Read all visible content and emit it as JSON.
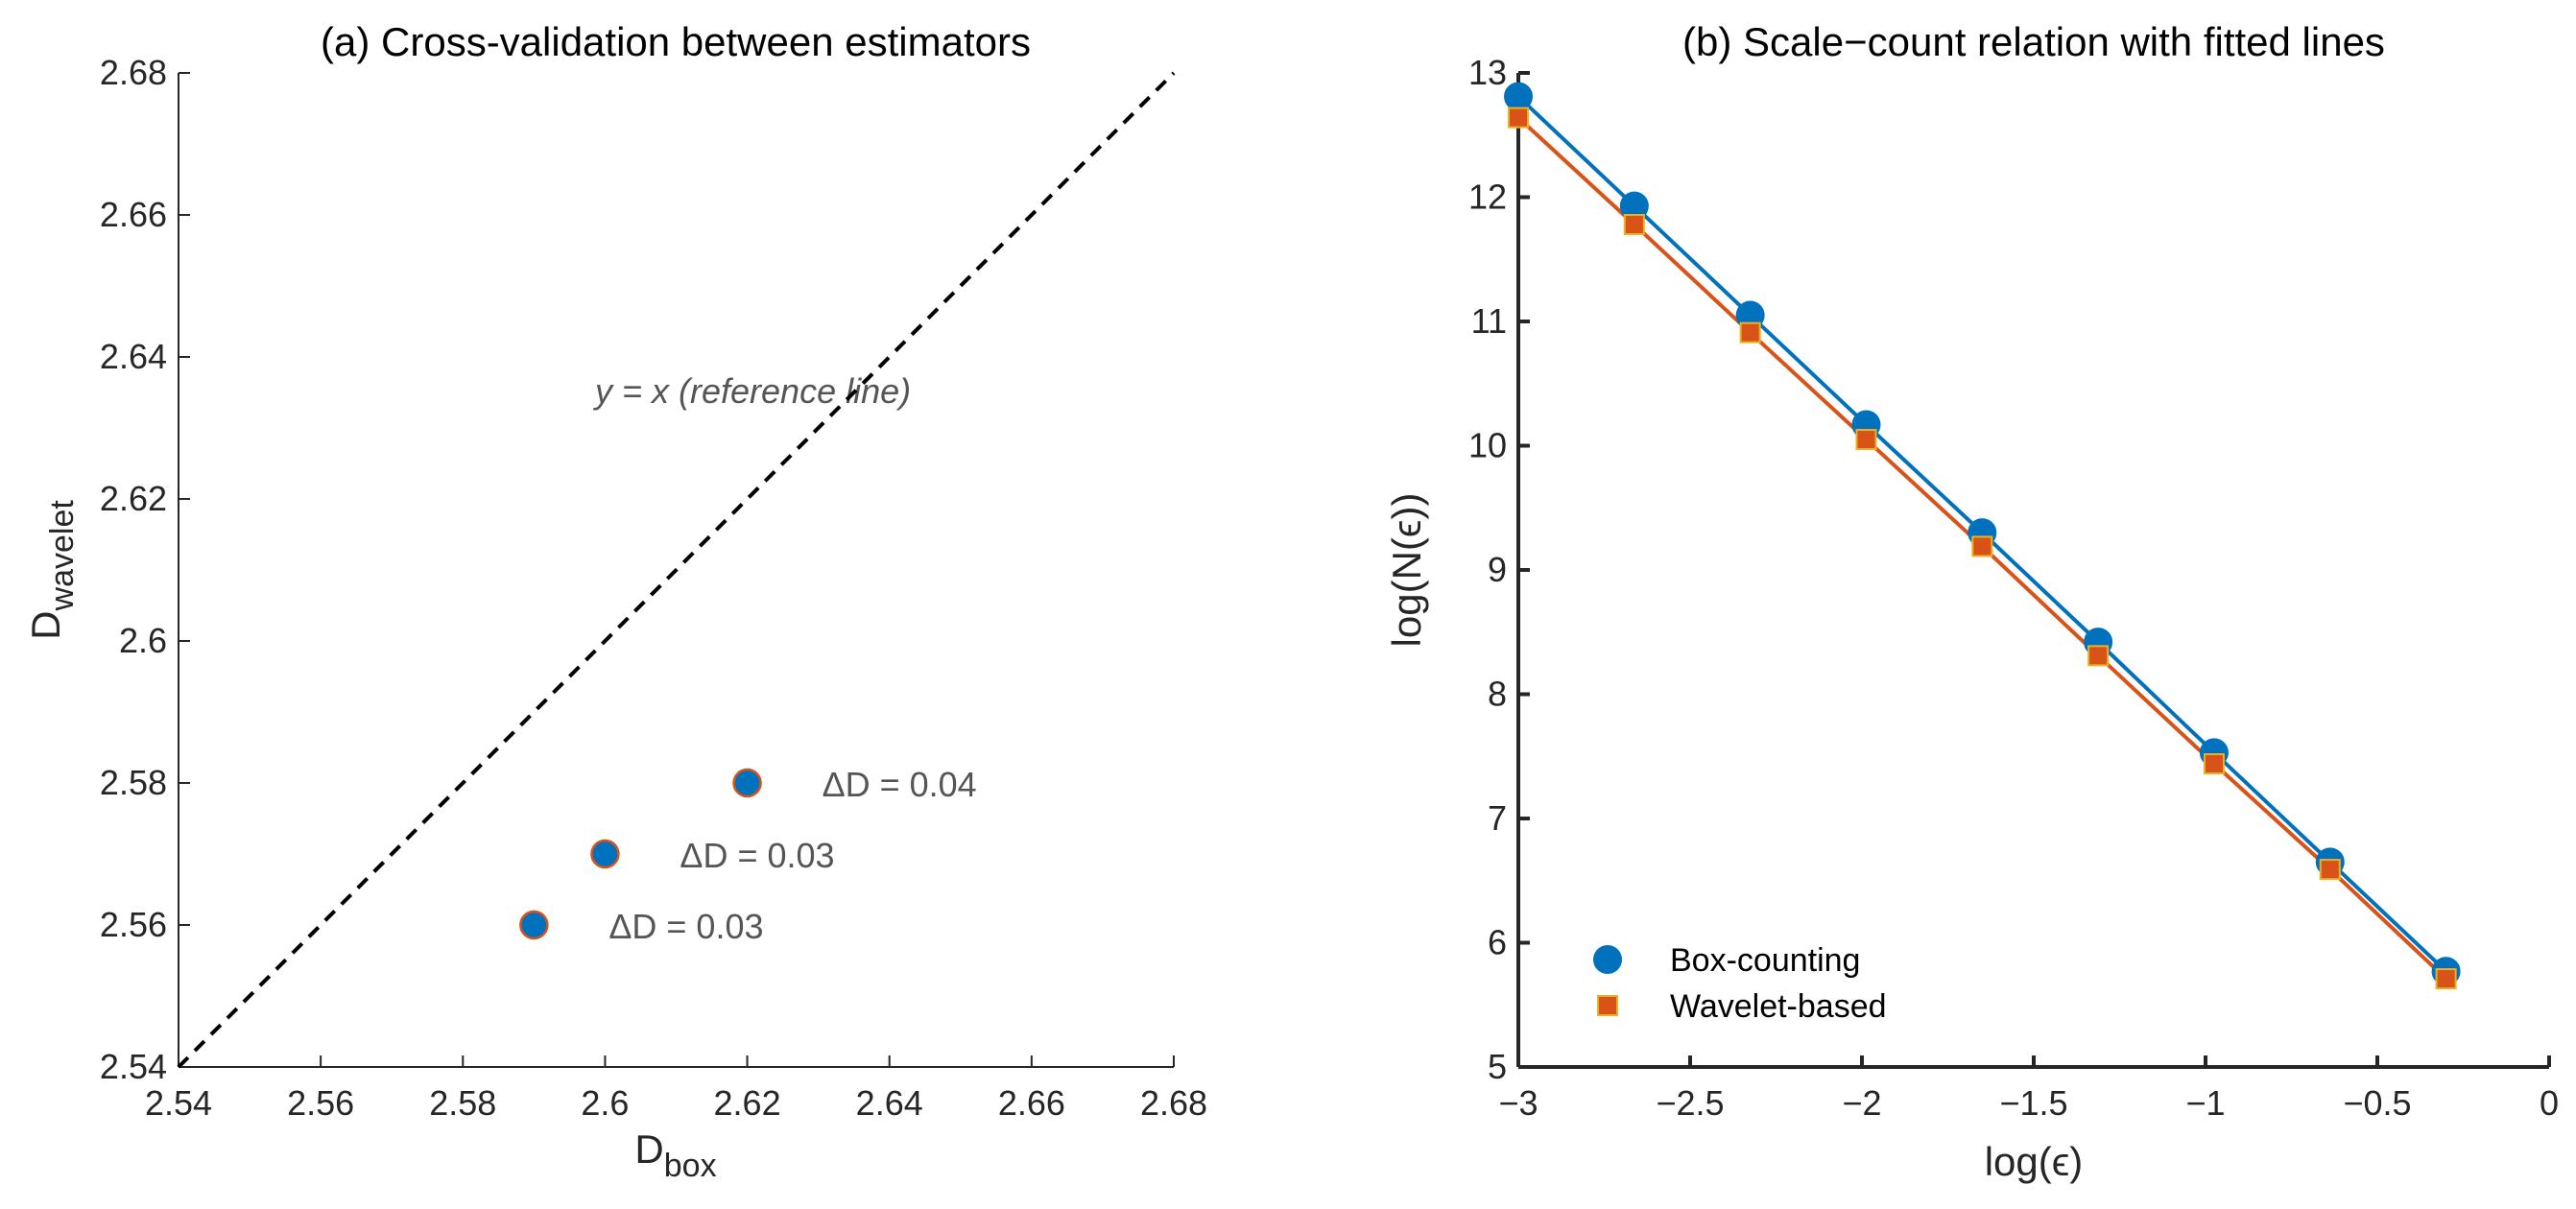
{
  "chart_data": [
    {
      "type": "scatter",
      "title": "(a) Cross-validation between estimators",
      "xlabel": {
        "main": "D",
        "sub": "box"
      },
      "ylabel": {
        "main": "D",
        "sub": "wavelet"
      },
      "xlim": [
        2.54,
        2.68
      ],
      "ylim": [
        2.54,
        2.68
      ],
      "xticks": [
        "2.54",
        "2.56",
        "2.58",
        "2.6",
        "2.62",
        "2.64",
        "2.66",
        "2.68"
      ],
      "yticks": [
        "2.54",
        "2.56",
        "2.58",
        "2.6",
        "2.62",
        "2.64",
        "2.66",
        "2.68"
      ],
      "grid": false,
      "reference_line": {
        "label": "y = x (reference line)",
        "style": "dashed",
        "color": "#000000"
      },
      "points": [
        {
          "x": 2.59,
          "y": 2.56,
          "label": "ΔD = 0.03"
        },
        {
          "x": 2.6,
          "y": 2.57,
          "label": "ΔD = 0.03"
        },
        {
          "x": 2.62,
          "y": 2.58,
          "label": "ΔD = 0.04"
        }
      ],
      "marker_fill": "#0072BD",
      "marker_edge": "#D95319"
    },
    {
      "type": "line",
      "title": "(b) Scale−count relation with fitted lines",
      "xlabel": "log(ϵ)",
      "ylabel": "log(N(ϵ))",
      "xlim": [
        -3,
        0
      ],
      "ylim": [
        5,
        13
      ],
      "xticks": [
        "−3",
        "−2.5",
        "−2",
        "−1.5",
        "−1",
        "−0.5",
        "0"
      ],
      "yticks": [
        "5",
        "6",
        "7",
        "8",
        "9",
        "10",
        "11",
        "12",
        "13"
      ],
      "grid": false,
      "legend_position": "bottom-left",
      "x": [
        -3,
        -2.6625,
        -2.325,
        -1.9875,
        -1.65,
        -1.3125,
        -0.975,
        -0.6375,
        -0.3
      ],
      "series": [
        {
          "name": "Box-counting",
          "marker": "circle",
          "color": "#0072BD",
          "edge": "#0072BD",
          "values": [
            12.81,
            11.93,
            11.05,
            10.17,
            9.3,
            8.42,
            7.53,
            6.65,
            5.77
          ]
        },
        {
          "name": "Wavelet-based",
          "marker": "square",
          "color": "#D95319",
          "edge": "#EDB120",
          "values": [
            12.64,
            11.78,
            10.91,
            10.05,
            9.19,
            8.31,
            7.44,
            6.59,
            5.71
          ]
        }
      ]
    }
  ]
}
